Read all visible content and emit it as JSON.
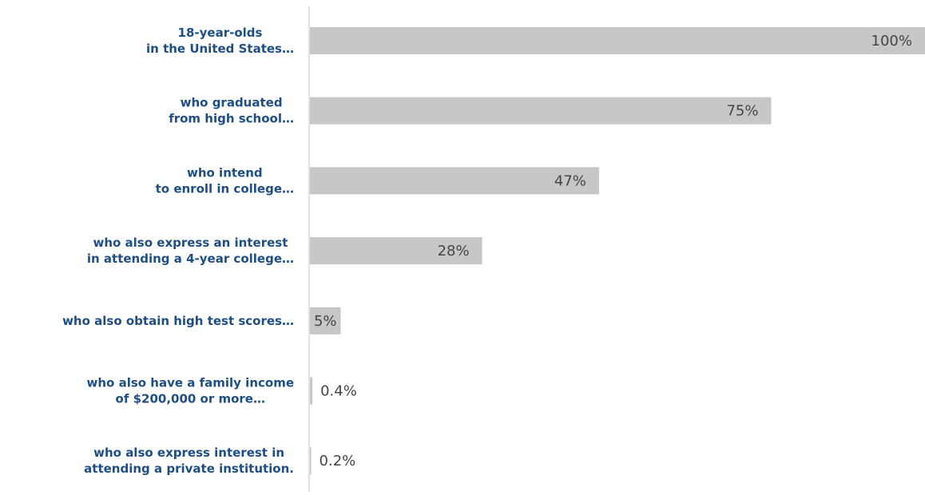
{
  "chart_data": {
    "type": "bar",
    "orientation": "horizontal",
    "categories": [
      [
        "18-year-olds",
        "in the United States…"
      ],
      [
        "who graduated",
        "from high school…"
      ],
      [
        "who intend",
        "to enroll in college…"
      ],
      [
        "who also express an interest",
        "in attending a 4-year college…"
      ],
      [
        "who also obtain high test scores…"
      ],
      [
        "who also have a family income",
        "of $200,000 or more…"
      ],
      [
        "who also express interest in",
        "attending a private institution."
      ]
    ],
    "values": [
      100,
      75,
      47,
      28,
      5,
      0.4,
      0.2
    ],
    "value_labels": [
      "100%",
      "75%",
      "47%",
      "28%",
      "5%",
      "0.4%",
      "0.2%"
    ],
    "color": "#c5c7c9",
    "xlim": [
      0,
      100
    ]
  }
}
